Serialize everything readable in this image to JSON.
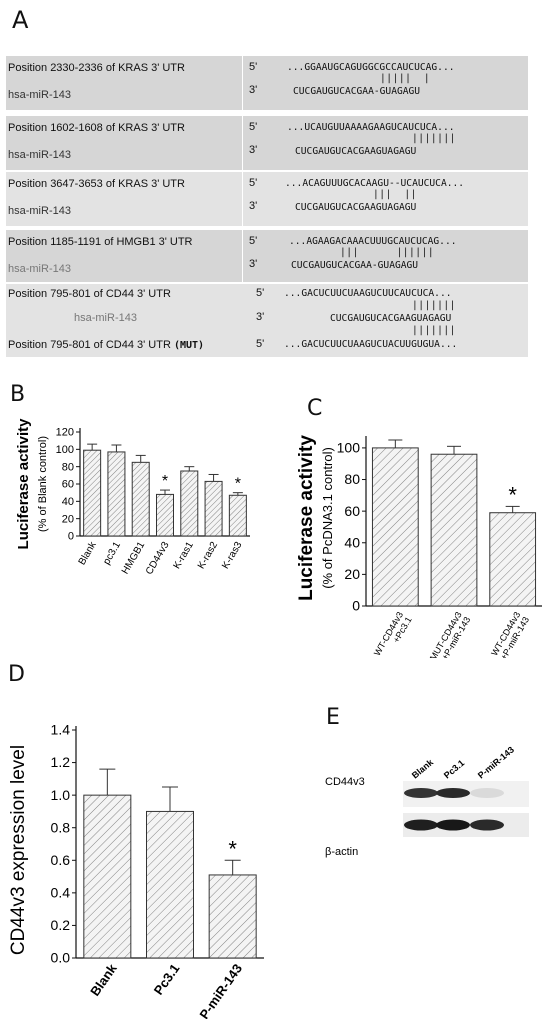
{
  "panels": {
    "A": "A",
    "B": "B",
    "C": "C",
    "D": "D",
    "E": "E"
  },
  "panel_a": {
    "rows": [
      {
        "target": "Position 2330-2336 of KRAS 3' UTR",
        "mirna": "hsa-miR-143",
        "p5": "5'",
        "p3": "3'",
        "utr": "...GGAAUGCAGUGGCGCCAUCUCAG...",
        "bars": "|||||  |",
        "mir_seq": "CUCGAUGUCACGAA-GUAGAGU"
      },
      {
        "target": "Position 1602-1608 of KRAS 3' UTR",
        "mirna": "hsa-miR-143",
        "p5": "5'",
        "p3": "3'",
        "utr": "...UCAUGUUAAAAGAAGUCAUCUCA...",
        "bars": "|||||||",
        "mir_seq": "CUCGAUGUCACGAAGUAGAGU"
      },
      {
        "target": "Position 3647-3653 of KRAS 3' UTR",
        "mirna": "hsa-miR-143",
        "p5": "5'",
        "p3": "3'",
        "utr": "...ACAGUUUGCACAAGU--UCAUCUCA...",
        "bars": "|||  ||",
        "mir_seq": "CUCGAUGUCACGAAGUAGAGU"
      },
      {
        "target": "Position 1185-1191 of HMGB1 3' UTR",
        "mirna": "hsa-miR-143",
        "p5": "5'",
        "p3": "3'",
        "utr": "...AGAAGACAAACUUUGCAUCUCAG...",
        "bars": "|||      ||||||",
        "mir_seq": "CUCGAUGUCACGAA-GUAGAGU"
      }
    ],
    "cd44": {
      "target": "Position 795-801 of CD44 3' UTR",
      "mirna": "hsa-miR-143",
      "mutant": "Position 795-801 of CD44 3' UTR",
      "mut_tag": "(MUT)",
      "p5": "5'",
      "p3": "3'",
      "utr": "...GACUCUUCUAAGUCUUCAUCUCA...",
      "bars": "|||||||",
      "mir_seq": "CUCGAUGUCACGAAGUAGAGU",
      "utr_mut": "...GACUCUUCUAAGUCUACUUGUGUA..."
    }
  },
  "colors": {
    "bar_fill": "#e2e2e2",
    "bar_stroke": "#333",
    "seq_box": "#d6d6d6"
  },
  "chart_data": [
    {
      "id": "B",
      "type": "bar",
      "categories": [
        "Blank",
        "pc3.1",
        "HMGB1",
        "CD44v3",
        "K-ras1",
        "K-ras2",
        "K-ras3"
      ],
      "values": [
        99,
        97,
        85,
        48,
        75,
        63,
        47
      ],
      "errors": [
        7,
        8,
        8,
        5,
        5,
        8,
        3
      ],
      "significant": [
        false,
        false,
        false,
        true,
        false,
        false,
        true
      ],
      "sig_mark": "*",
      "ylabel_line1": "Luciferase activity",
      "ylabel_line2": "(% of Blank control)",
      "yticks": [
        "0",
        "20",
        "40",
        "60",
        "80",
        "100",
        "120"
      ],
      "ylim": [
        0,
        120
      ]
    },
    {
      "id": "C",
      "type": "bar",
      "categories": [
        "WT-CD44v3\n+Pc3.1",
        "MUT-CD44v3\n+P-miR-143",
        "WT-CD44v3\n+P-miR-143"
      ],
      "values": [
        100,
        96,
        59
      ],
      "errors": [
        5,
        5,
        4
      ],
      "significant": [
        false,
        false,
        true
      ],
      "sig_mark": "*",
      "ylabel_line1": "Luciferase activity",
      "ylabel_line2": "(% of PcDNA3.1 control)",
      "yticks": [
        "0",
        "20",
        "40",
        "60",
        "80",
        "100"
      ],
      "ylim": [
        0,
        105
      ]
    },
    {
      "id": "D",
      "type": "bar",
      "categories": [
        "Blank",
        "Pc3.1",
        "P-miR-143"
      ],
      "values": [
        1.0,
        0.9,
        0.51
      ],
      "errors": [
        0.16,
        0.15,
        0.09
      ],
      "significant": [
        false,
        false,
        true
      ],
      "sig_mark": "*",
      "ylabel": "CD44v3 expression level",
      "yticks": [
        "0.0",
        "0.2",
        "0.4",
        "0.6",
        "0.8",
        "1.0",
        "1.2",
        "1.4"
      ],
      "ylim": [
        0,
        1.4
      ]
    }
  ],
  "blot": {
    "lanes": [
      "Blank",
      "Pc3.1",
      "P-miR-143"
    ],
    "rows": [
      {
        "label": "CD44v3",
        "intensity": [
          0.85,
          0.9,
          0.08
        ]
      },
      {
        "label": "β-actin",
        "intensity": [
          0.95,
          0.98,
          0.9
        ]
      }
    ]
  }
}
